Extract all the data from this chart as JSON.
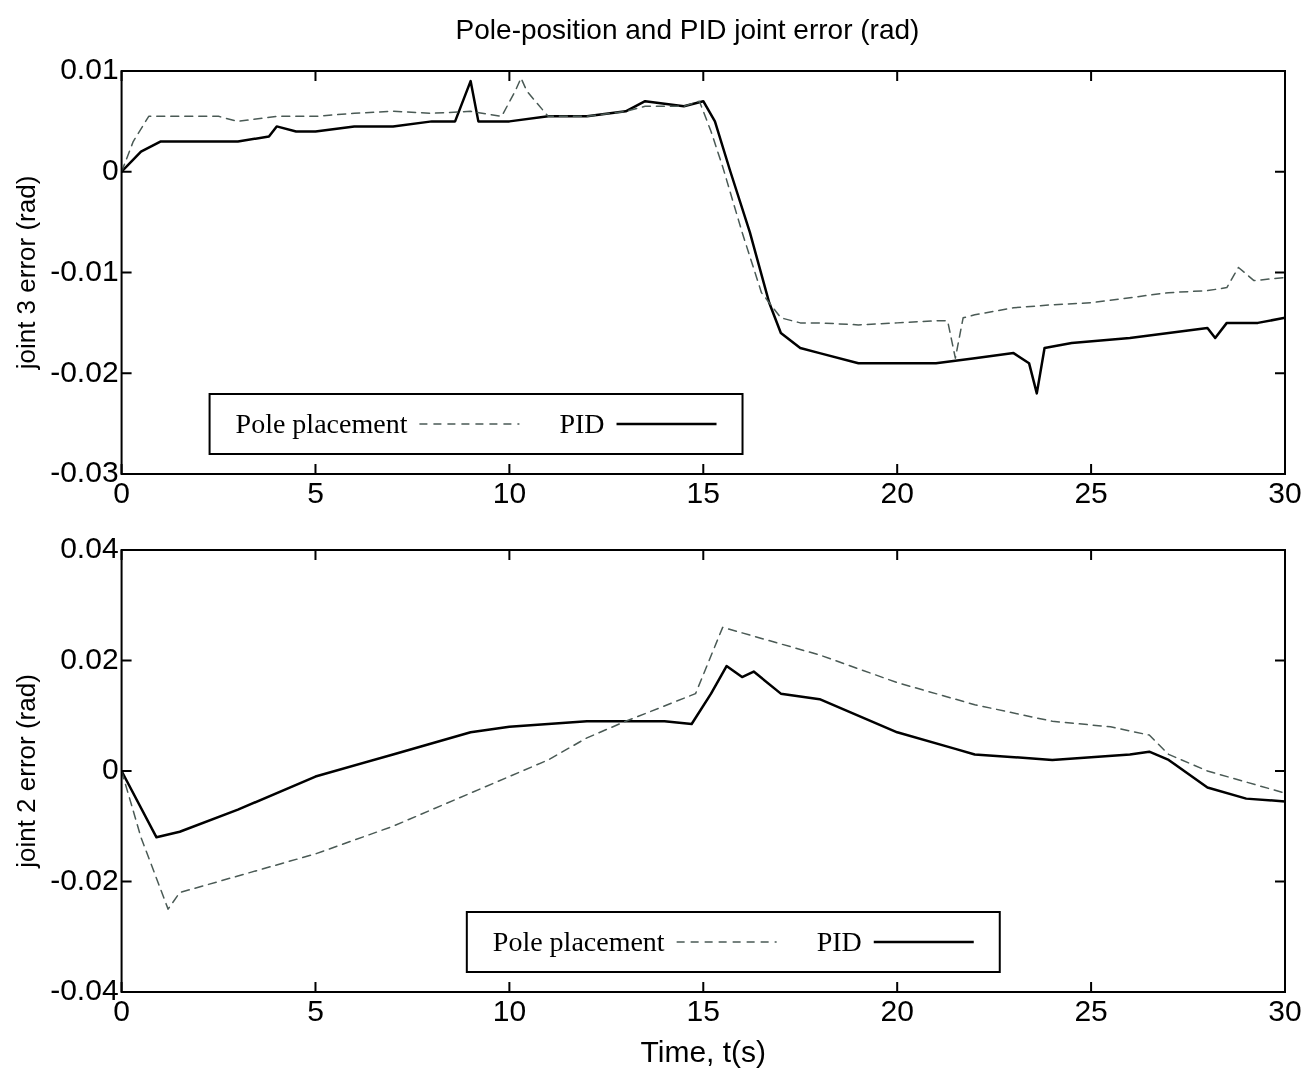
{
  "chart_data": [
    {
      "type": "line",
      "title": "Pole-position and PID joint error (rad)",
      "ylabel": "joint 3 error (rad)",
      "xlim": [
        0,
        30
      ],
      "xticks": [
        0,
        5,
        10,
        15,
        20,
        25,
        30
      ],
      "ylim": [
        -0.03,
        0.01
      ],
      "yticks": [
        -0.03,
        -0.02,
        -0.01,
        0,
        0.01
      ],
      "grid": false,
      "legend": "bottom left",
      "series": [
        {
          "name": "Pole placement",
          "color": "#4a5a55",
          "line_style": "dashed",
          "x": [
            0,
            0.3,
            0.7,
            1.5,
            2.5,
            3,
            4,
            5,
            6,
            7,
            8,
            9,
            9.8,
            10.15,
            10.3,
            10.45,
            11,
            12,
            13,
            13.5,
            14.5,
            14.9,
            15.2,
            15.5,
            16,
            16.5,
            17,
            17.5,
            18,
            19,
            20,
            21,
            21.3,
            21.5,
            21.7,
            22,
            23,
            24,
            25,
            26,
            27,
            28,
            28.5,
            28.8,
            29.2,
            30
          ],
          "values": [
            0,
            0.003,
            0.0055,
            0.0055,
            0.0055,
            0.005,
            0.0055,
            0.0055,
            0.0058,
            0.006,
            0.0058,
            0.006,
            0.0055,
            0.008,
            0.0093,
            0.008,
            0.0055,
            0.0055,
            0.006,
            0.0065,
            0.0065,
            0.007,
            0.004,
            0.0005,
            -0.006,
            -0.012,
            -0.0145,
            -0.015,
            -0.015,
            -0.0152,
            -0.015,
            -0.0148,
            -0.0148,
            -0.0185,
            -0.0145,
            -0.0142,
            -0.0135,
            -0.0132,
            -0.013,
            -0.0125,
            -0.012,
            -0.0118,
            -0.0115,
            -0.0095,
            -0.0108,
            -0.0105
          ]
        },
        {
          "name": "PID",
          "color": "#000000",
          "line_style": "solid",
          "x": [
            0,
            0.5,
            1,
            2,
            3,
            3.8,
            4,
            4.5,
            5,
            6,
            7,
            8,
            8.6,
            9,
            9.2,
            10,
            11,
            12,
            13,
            13.5,
            14.5,
            15,
            15.3,
            15.7,
            16.2,
            16.7,
            17,
            17.5,
            18,
            19,
            20,
            21,
            22,
            23,
            23.4,
            23.6,
            23.8,
            24.5,
            26,
            27,
            28,
            28.2,
            28.5,
            29.3,
            30
          ],
          "values": [
            0,
            0.002,
            0.003,
            0.003,
            0.003,
            0.0035,
            0.0045,
            0.004,
            0.004,
            0.0045,
            0.0045,
            0.005,
            0.005,
            0.009,
            0.005,
            0.005,
            0.0055,
            0.0055,
            0.006,
            0.007,
            0.0065,
            0.007,
            0.005,
            0.0,
            -0.006,
            -0.013,
            -0.016,
            -0.0175,
            -0.018,
            -0.019,
            -0.019,
            -0.019,
            -0.0185,
            -0.018,
            -0.019,
            -0.022,
            -0.0175,
            -0.017,
            -0.0165,
            -0.016,
            -0.0155,
            -0.0165,
            -0.015,
            -0.015,
            -0.0145
          ]
        }
      ]
    },
    {
      "type": "line",
      "xlabel": "Time, t(s)",
      "ylabel": "joint 2 error (rad)",
      "xlim": [
        0,
        30
      ],
      "xticks": [
        0,
        5,
        10,
        15,
        20,
        25,
        30
      ],
      "ylim": [
        -0.04,
        0.04
      ],
      "yticks": [
        -0.04,
        -0.02,
        0,
        0.02,
        0.04
      ],
      "grid": false,
      "legend": "bottom",
      "series": [
        {
          "name": "Pole placement",
          "color": "#4a5a55",
          "line_style": "dashed",
          "x": [
            0,
            0.5,
            1.2,
            1.5,
            3,
            5,
            7,
            9,
            11,
            12,
            13,
            14.8,
            15.5,
            16,
            18,
            20,
            22,
            24,
            25.5,
            26.5,
            27,
            28,
            29,
            30
          ],
          "values": [
            0,
            -0.012,
            -0.025,
            -0.022,
            -0.019,
            -0.015,
            -0.01,
            -0.004,
            0.002,
            0.006,
            0.009,
            0.014,
            0.026,
            0.025,
            0.021,
            0.016,
            0.012,
            0.009,
            0.008,
            0.0065,
            0.003,
            0.0,
            -0.002,
            -0.004
          ]
        },
        {
          "name": "PID",
          "color": "#000000",
          "line_style": "solid",
          "x": [
            0,
            0.9,
            1.5,
            3,
            5,
            7,
            9,
            10,
            12,
            14,
            14.7,
            15.2,
            15.6,
            16,
            16.3,
            17,
            18,
            20,
            21.5,
            22,
            24,
            26,
            26.5,
            27,
            28,
            29,
            30
          ],
          "values": [
            0,
            -0.012,
            -0.011,
            -0.007,
            -0.001,
            0.003,
            0.007,
            0.008,
            0.009,
            0.009,
            0.0085,
            0.014,
            0.019,
            0.017,
            0.018,
            0.014,
            0.013,
            0.007,
            0.004,
            0.003,
            0.002,
            0.003,
            0.0035,
            0.002,
            -0.003,
            -0.005,
            -0.0055
          ]
        }
      ]
    }
  ]
}
